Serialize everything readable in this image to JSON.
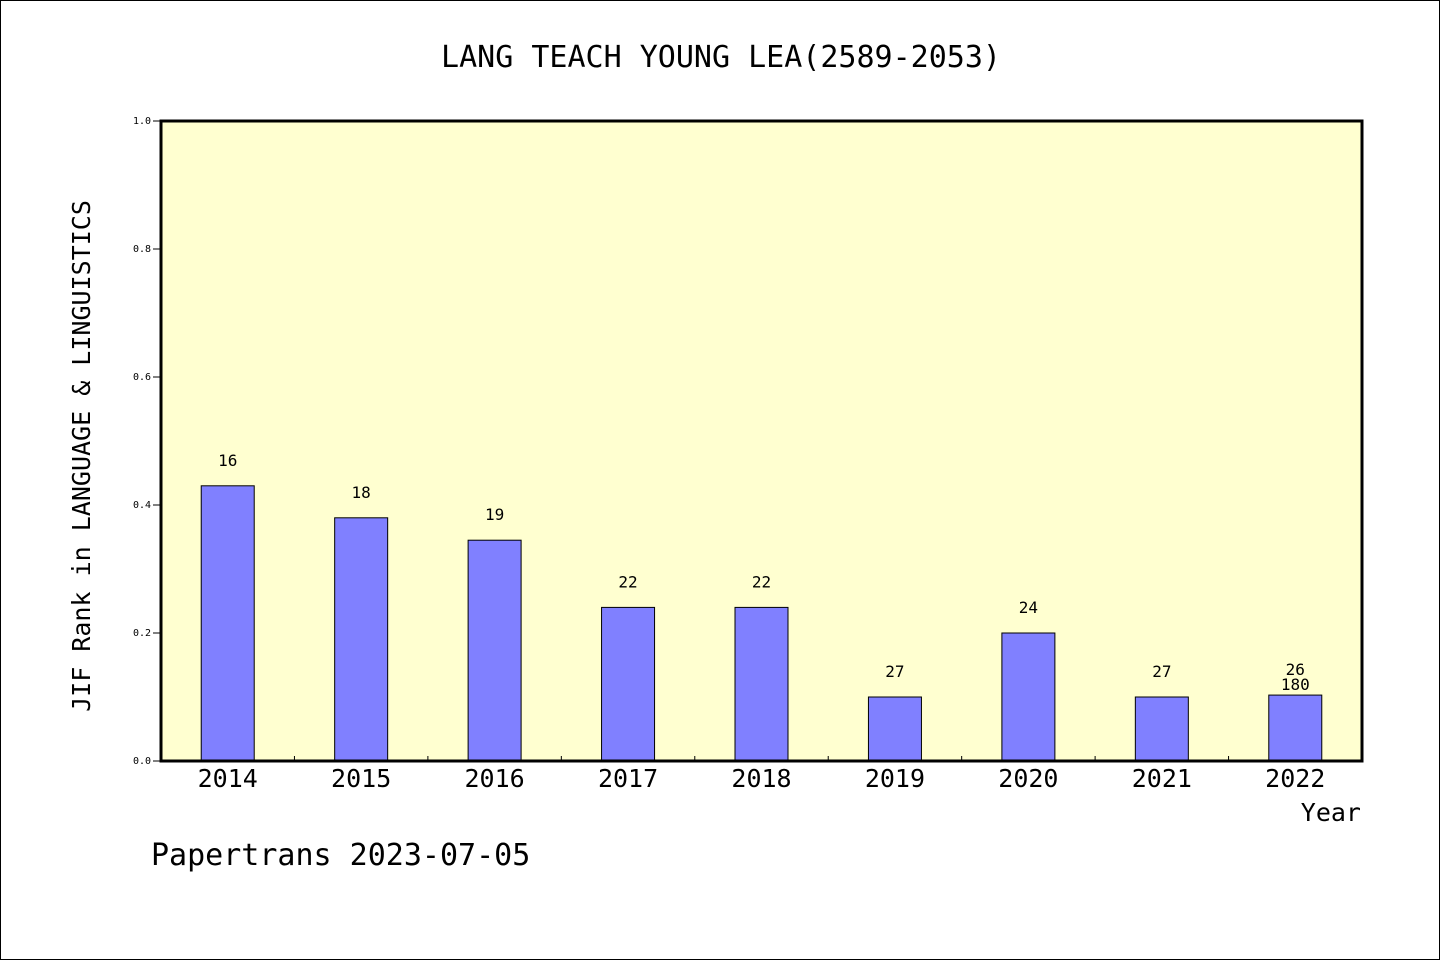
{
  "chart_data": {
    "type": "bar",
    "title": "LANG TEACH YOUNG LEA(2589-2053)",
    "xlabel": "Year",
    "ylabel": "JIF Rank in LANGUAGE & LINGUISTICS",
    "ylim": [
      0,
      1.0
    ],
    "yticks": [
      "0.0",
      "0.2",
      "0.4",
      "0.6",
      "0.8",
      "1.0"
    ],
    "grid": false,
    "categories": [
      "2014",
      "2015",
      "2016",
      "2017",
      "2018",
      "2019",
      "2020",
      "2021",
      "2022"
    ],
    "values": [
      0.43,
      0.38,
      0.345,
      0.24,
      0.24,
      0.1,
      0.2,
      0.1,
      0.103
    ],
    "bar_labels": [
      "16",
      "18",
      "19",
      "22",
      "22",
      "27",
      "24",
      "27",
      "26"
    ],
    "extra_labels": [
      {
        "category": "2022",
        "text": "180"
      }
    ],
    "colors": {
      "plot_background": "#ffffd0",
      "bar_fill": "#8080ff",
      "bar_stroke": "#000000"
    }
  },
  "footer": {
    "watermark": "Papertrans 2023-07-05"
  }
}
